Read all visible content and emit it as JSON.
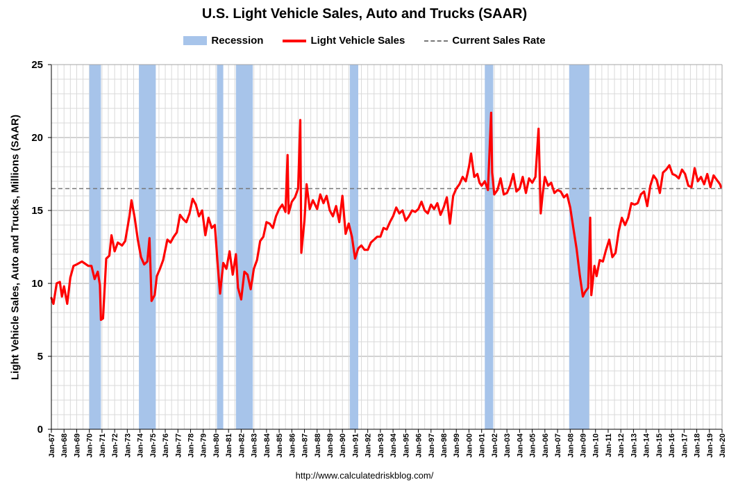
{
  "title": "U.S. Light Vehicle Sales, Auto and Trucks (SAAR)",
  "legend": {
    "recession": "Recession",
    "sales": "Light Vehicle Sales",
    "current": "Current Sales Rate"
  },
  "source": "http://www.calculatedriskblog.com/",
  "colors": {
    "sales_line": "#ff0000",
    "recession_band": "#a7c4ea",
    "current_rate_line": "#777777",
    "grid": "#d9d9d9"
  },
  "chart_data": {
    "type": "line",
    "title": "U.S. Light Vehicle Sales, Auto and Trucks (SAAR)",
    "ylabel": "Light Vehicle Sales, Auto and Trucks, Millions (SAAR)",
    "xlabel": "",
    "ylim": [
      0,
      25
    ],
    "yticks": [
      0,
      5,
      10,
      15,
      20,
      25
    ],
    "xlim": [
      "1967-01",
      "2020-01"
    ],
    "xtick_labels": [
      "Jan-67",
      "Jan-68",
      "Jan-69",
      "Jan-70",
      "Jan-71",
      "Jan-72",
      "Jan-73",
      "Jan-74",
      "Jan-75",
      "Jan-76",
      "Jan-77",
      "Jan-78",
      "Jan-79",
      "Jan-80",
      "Jan-81",
      "Jan-82",
      "Jan-83",
      "Jan-84",
      "Jan-85",
      "Jan-86",
      "Jan-87",
      "Jan-88",
      "Jan-89",
      "Jan-90",
      "Jan-91",
      "Jan-92",
      "Jan-93",
      "Jan-94",
      "Jan-95",
      "Jan-96",
      "Jan-97",
      "Jan-98",
      "Jan-99",
      "Jan-00",
      "Jan-01",
      "Jan-02",
      "Jan-03",
      "Jan-04",
      "Jan-05",
      "Jan-06",
      "Jan-07",
      "Jan-08",
      "Jan-09",
      "Jan-10",
      "Jan-11",
      "Jan-12",
      "Jan-13",
      "Jan-14",
      "Jan-15",
      "Jan-16",
      "Jan-17",
      "Jan-18",
      "Jan-19",
      "Jan-20"
    ],
    "grid": true,
    "legend_position": "top",
    "current_sales_rate": 16.5,
    "recessions": [
      [
        "1970-01",
        "1970-11"
      ],
      [
        "1973-12",
        "1975-03"
      ],
      [
        "1980-02",
        "1980-07"
      ],
      [
        "1981-08",
        "1982-11"
      ],
      [
        "1990-08",
        "1991-03"
      ],
      [
        "2001-04",
        "2001-11"
      ],
      [
        "2007-12",
        "2009-06"
      ]
    ],
    "series": [
      {
        "name": "Light Vehicle Sales",
        "points": [
          [
            "1967-01",
            9.0
          ],
          [
            "1967-03",
            8.6
          ],
          [
            "1967-06",
            10.0
          ],
          [
            "1967-09",
            10.1
          ],
          [
            "1967-11",
            9.1
          ],
          [
            "1968-01",
            9.8
          ],
          [
            "1968-04",
            8.6
          ],
          [
            "1968-07",
            10.4
          ],
          [
            "1968-10",
            11.2
          ],
          [
            "1969-01",
            11.3
          ],
          [
            "1969-06",
            11.5
          ],
          [
            "1969-12",
            11.2
          ],
          [
            "1970-03",
            11.2
          ],
          [
            "1970-06",
            10.3
          ],
          [
            "1970-09",
            10.8
          ],
          [
            "1970-11",
            9.9
          ],
          [
            "1970-12",
            7.5
          ],
          [
            "1971-02",
            7.6
          ],
          [
            "1971-05",
            11.7
          ],
          [
            "1971-08",
            11.9
          ],
          [
            "1971-10",
            13.3
          ],
          [
            "1972-01",
            12.2
          ],
          [
            "1972-04",
            12.8
          ],
          [
            "1972-08",
            12.6
          ],
          [
            "1972-11",
            12.9
          ],
          [
            "1973-03",
            14.6
          ],
          [
            "1973-05",
            15.7
          ],
          [
            "1973-08",
            14.5
          ],
          [
            "1973-11",
            13.0
          ],
          [
            "1974-02",
            11.8
          ],
          [
            "1974-05",
            11.3
          ],
          [
            "1974-08",
            11.5
          ],
          [
            "1974-10",
            13.1
          ],
          [
            "1974-12",
            8.8
          ],
          [
            "1975-03",
            9.2
          ],
          [
            "1975-05",
            10.5
          ],
          [
            "1975-08",
            11.0
          ],
          [
            "1975-11",
            11.6
          ],
          [
            "1976-03",
            13.0
          ],
          [
            "1976-06",
            12.8
          ],
          [
            "1976-09",
            13.2
          ],
          [
            "1976-12",
            13.5
          ],
          [
            "1977-03",
            14.7
          ],
          [
            "1977-06",
            14.4
          ],
          [
            "1977-09",
            14.2
          ],
          [
            "1977-12",
            14.8
          ],
          [
            "1978-03",
            15.8
          ],
          [
            "1978-06",
            15.4
          ],
          [
            "1978-09",
            14.6
          ],
          [
            "1978-12",
            15.0
          ],
          [
            "1979-03",
            13.3
          ],
          [
            "1979-06",
            14.5
          ],
          [
            "1979-09",
            13.8
          ],
          [
            "1979-12",
            14.0
          ],
          [
            "1980-03",
            11.0
          ],
          [
            "1980-05",
            9.3
          ],
          [
            "1980-08",
            11.4
          ],
          [
            "1980-11",
            11.0
          ],
          [
            "1981-02",
            12.2
          ],
          [
            "1981-05",
            10.6
          ],
          [
            "1981-08",
            12.0
          ],
          [
            "1981-10",
            9.7
          ],
          [
            "1982-01",
            8.9
          ],
          [
            "1982-04",
            10.8
          ],
          [
            "1982-07",
            10.6
          ],
          [
            "1982-10",
            9.6
          ],
          [
            "1983-01",
            11.0
          ],
          [
            "1983-04",
            11.6
          ],
          [
            "1983-07",
            12.9
          ],
          [
            "1983-10",
            13.2
          ],
          [
            "1984-01",
            14.2
          ],
          [
            "1984-04",
            14.1
          ],
          [
            "1984-07",
            13.8
          ],
          [
            "1984-10",
            14.6
          ],
          [
            "1985-01",
            15.1
          ],
          [
            "1985-04",
            15.4
          ],
          [
            "1985-07",
            14.9
          ],
          [
            "1985-09",
            18.8
          ],
          [
            "1985-10",
            14.8
          ],
          [
            "1986-01",
            15.6
          ],
          [
            "1986-04",
            15.9
          ],
          [
            "1986-07",
            16.5
          ],
          [
            "1986-09",
            21.2
          ],
          [
            "1986-10",
            12.1
          ],
          [
            "1987-01",
            14.3
          ],
          [
            "1987-03",
            16.8
          ],
          [
            "1987-06",
            15.1
          ],
          [
            "1987-09",
            15.7
          ],
          [
            "1988-01",
            15.1
          ],
          [
            "1988-04",
            16.1
          ],
          [
            "1988-07",
            15.5
          ],
          [
            "1988-10",
            16.0
          ],
          [
            "1989-01",
            15.0
          ],
          [
            "1989-04",
            14.6
          ],
          [
            "1989-07",
            15.3
          ],
          [
            "1989-10",
            14.2
          ],
          [
            "1990-01",
            16.0
          ],
          [
            "1990-04",
            13.4
          ],
          [
            "1990-07",
            14.1
          ],
          [
            "1990-10",
            13.2
          ],
          [
            "1991-01",
            11.7
          ],
          [
            "1991-04",
            12.4
          ],
          [
            "1991-07",
            12.6
          ],
          [
            "1991-10",
            12.3
          ],
          [
            "1992-01",
            12.3
          ],
          [
            "1992-04",
            12.8
          ],
          [
            "1992-07",
            13.0
          ],
          [
            "1992-10",
            13.2
          ],
          [
            "1993-01",
            13.2
          ],
          [
            "1993-04",
            13.8
          ],
          [
            "1993-07",
            13.7
          ],
          [
            "1993-10",
            14.2
          ],
          [
            "1994-01",
            14.6
          ],
          [
            "1994-04",
            15.2
          ],
          [
            "1994-07",
            14.8
          ],
          [
            "1994-10",
            15.0
          ],
          [
            "1995-01",
            14.3
          ],
          [
            "1995-04",
            14.6
          ],
          [
            "1995-07",
            15.0
          ],
          [
            "1995-10",
            14.9
          ],
          [
            "1996-01",
            15.1
          ],
          [
            "1996-04",
            15.6
          ],
          [
            "1996-07",
            15.0
          ],
          [
            "1996-10",
            14.8
          ],
          [
            "1997-01",
            15.4
          ],
          [
            "1997-04",
            15.1
          ],
          [
            "1997-07",
            15.5
          ],
          [
            "1997-10",
            14.7
          ],
          [
            "1998-01",
            15.2
          ],
          [
            "1998-04",
            15.9
          ],
          [
            "1998-07",
            14.1
          ],
          [
            "1998-10",
            16.0
          ],
          [
            "1999-01",
            16.5
          ],
          [
            "1999-04",
            16.8
          ],
          [
            "1999-07",
            17.3
          ],
          [
            "1999-10",
            17.0
          ],
          [
            "2000-01",
            18.0
          ],
          [
            "2000-03",
            18.9
          ],
          [
            "2000-06",
            17.3
          ],
          [
            "2000-09",
            17.5
          ],
          [
            "2000-11",
            16.9
          ],
          [
            "2001-01",
            16.7
          ],
          [
            "2001-04",
            17.0
          ],
          [
            "2001-07",
            16.4
          ],
          [
            "2001-10",
            21.7
          ],
          [
            "2001-11",
            17.6
          ],
          [
            "2002-01",
            16.1
          ],
          [
            "2002-04",
            16.4
          ],
          [
            "2002-07",
            17.2
          ],
          [
            "2002-10",
            16.1
          ],
          [
            "2003-01",
            16.2
          ],
          [
            "2003-04",
            16.7
          ],
          [
            "2003-07",
            17.5
          ],
          [
            "2003-10",
            16.3
          ],
          [
            "2004-01",
            16.5
          ],
          [
            "2004-04",
            17.3
          ],
          [
            "2004-07",
            16.2
          ],
          [
            "2004-10",
            17.2
          ],
          [
            "2005-01",
            16.9
          ],
          [
            "2005-04",
            17.3
          ],
          [
            "2005-07",
            20.6
          ],
          [
            "2005-09",
            14.8
          ],
          [
            "2005-11",
            16.2
          ],
          [
            "2006-01",
            17.3
          ],
          [
            "2006-04",
            16.7
          ],
          [
            "2006-07",
            16.9
          ],
          [
            "2006-10",
            16.2
          ],
          [
            "2007-01",
            16.4
          ],
          [
            "2007-04",
            16.3
          ],
          [
            "2007-07",
            15.9
          ],
          [
            "2007-10",
            16.1
          ],
          [
            "2008-01",
            15.2
          ],
          [
            "2008-04",
            13.8
          ],
          [
            "2008-07",
            12.4
          ],
          [
            "2008-10",
            10.6
          ],
          [
            "2009-01",
            9.1
          ],
          [
            "2009-03",
            9.4
          ],
          [
            "2009-06",
            9.7
          ],
          [
            "2009-08",
            14.5
          ],
          [
            "2009-09",
            9.2
          ],
          [
            "2009-12",
            11.2
          ],
          [
            "2010-02",
            10.5
          ],
          [
            "2010-05",
            11.6
          ],
          [
            "2010-08",
            11.5
          ],
          [
            "2010-11",
            12.3
          ],
          [
            "2011-02",
            13.0
          ],
          [
            "2011-05",
            11.8
          ],
          [
            "2011-08",
            12.1
          ],
          [
            "2011-11",
            13.6
          ],
          [
            "2012-02",
            14.5
          ],
          [
            "2012-05",
            14.0
          ],
          [
            "2012-08",
            14.5
          ],
          [
            "2012-11",
            15.5
          ],
          [
            "2013-02",
            15.4
          ],
          [
            "2013-05",
            15.5
          ],
          [
            "2013-08",
            16.1
          ],
          [
            "2013-11",
            16.3
          ],
          [
            "2014-02",
            15.3
          ],
          [
            "2014-05",
            16.7
          ],
          [
            "2014-08",
            17.4
          ],
          [
            "2014-11",
            17.1
          ],
          [
            "2015-02",
            16.2
          ],
          [
            "2015-05",
            17.6
          ],
          [
            "2015-08",
            17.8
          ],
          [
            "2015-11",
            18.1
          ],
          [
            "2016-02",
            17.5
          ],
          [
            "2016-05",
            17.4
          ],
          [
            "2016-08",
            17.2
          ],
          [
            "2016-11",
            17.8
          ],
          [
            "2017-02",
            17.5
          ],
          [
            "2017-05",
            16.7
          ],
          [
            "2017-08",
            16.6
          ],
          [
            "2017-11",
            17.9
          ],
          [
            "2018-02",
            17.0
          ],
          [
            "2018-05",
            17.3
          ],
          [
            "2018-08",
            16.8
          ],
          [
            "2018-11",
            17.5
          ],
          [
            "2019-02",
            16.6
          ],
          [
            "2019-05",
            17.4
          ],
          [
            "2019-08",
            17.1
          ],
          [
            "2019-11",
            16.8
          ],
          [
            "2019-12",
            16.6
          ]
        ]
      }
    ]
  }
}
